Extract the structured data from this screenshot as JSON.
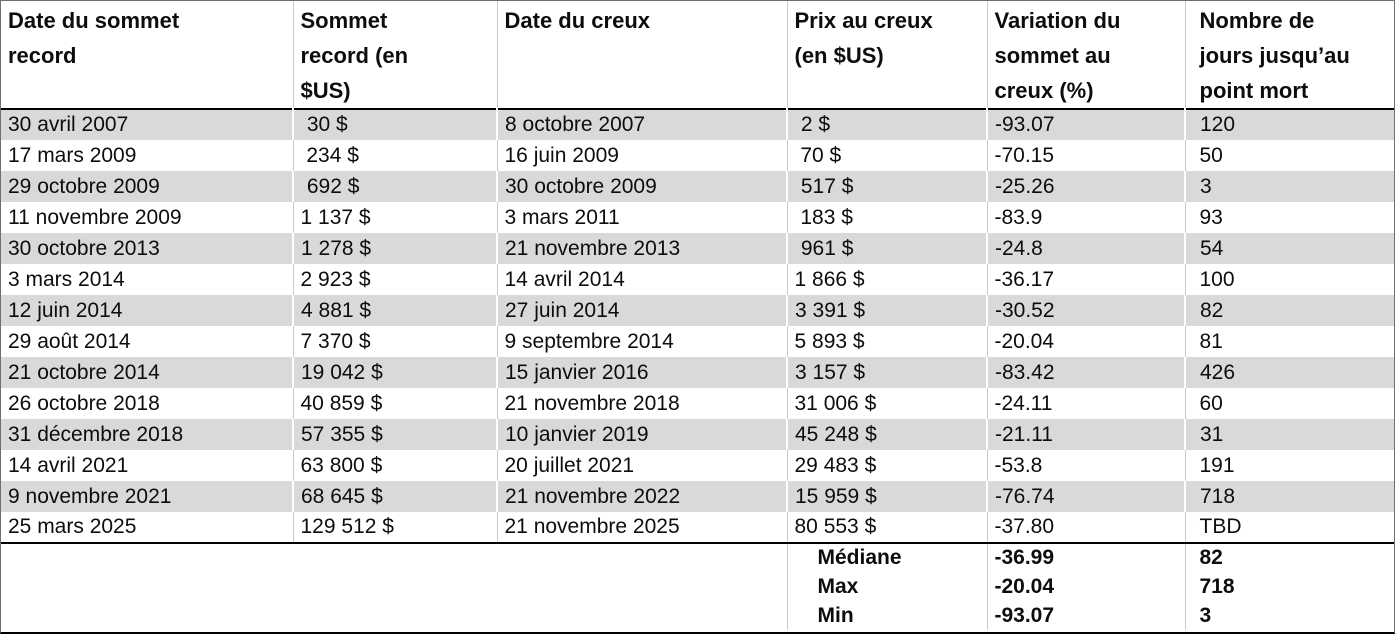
{
  "colors": {
    "row_stripe": "#d9d9d9",
    "grid_line": "#c9c9c9",
    "section_divider": "#000000",
    "text": "#0d0d0d"
  },
  "chart_data": {
    "type": "table",
    "title": "",
    "columns": [
      "Date du sommet\nrecord",
      "Sommet\nrecord (en\n$US)",
      "Date du creux",
      "Prix au creux\n(en $US)",
      "Variation du\nsommet au\ncreux (%)",
      "Nombre de\njours jusqu’au\npoint mort"
    ],
    "rows": [
      [
        "30 avril 2007",
        " 30 $",
        "8 octobre 2007",
        " 2 $",
        "-93.07",
        "120"
      ],
      [
        "17 mars 2009",
        " 234 $",
        "16 juin 2009",
        " 70 $",
        "-70.15",
        "50"
      ],
      [
        "29 octobre 2009",
        " 692 $",
        "30 octobre 2009",
        " 517 $",
        "-25.26",
        "3"
      ],
      [
        "11 novembre 2009",
        "1 137 $",
        "3 mars 2011",
        " 183 $",
        "-83.9",
        "93"
      ],
      [
        "30 octobre 2013",
        "1 278 $",
        "21 novembre 2013",
        " 961 $",
        "-24.8",
        "54"
      ],
      [
        "3 mars 2014",
        "2 923 $",
        "14 avril 2014",
        "1 866 $",
        "-36.17",
        "100"
      ],
      [
        "12 juin 2014",
        "4 881 $",
        "27 juin 2014",
        "3 391 $",
        "-30.52",
        "82"
      ],
      [
        "29 août 2014",
        "7 370 $",
        "9 septembre 2014",
        "5 893 $",
        "-20.04",
        "81"
      ],
      [
        "21 octobre 2014",
        "19 042 $",
        "15 janvier 2016",
        "3 157 $",
        "-83.42",
        "426"
      ],
      [
        "26 octobre 2018",
        "40 859 $",
        "21 novembre 2018",
        "31 006 $",
        "-24.11",
        "60"
      ],
      [
        "31 décembre 2018",
        "57 355 $",
        "10 janvier 2019",
        "45 248 $",
        "-21.11",
        "31"
      ],
      [
        "14 avril 2021",
        "63 800 $",
        "20 juillet 2021",
        "29 483 $",
        "-53.8",
        "191"
      ],
      [
        "9 novembre 2021",
        "68 645 $",
        "21 novembre 2022",
        "15 959 $",
        "-76.74",
        "718"
      ],
      [
        "25 mars 2025",
        "129 512 $",
        "21 novembre 2025",
        "80 553 $",
        "-37.80",
        "TBD"
      ]
    ],
    "summary": [
      {
        "label": "Médiane",
        "variation": "-36.99",
        "days": "82"
      },
      {
        "label": "Max",
        "variation": "-20.04",
        "days": "718"
      },
      {
        "label": "Min",
        "variation": "-93.07",
        "days": "3"
      }
    ]
  }
}
